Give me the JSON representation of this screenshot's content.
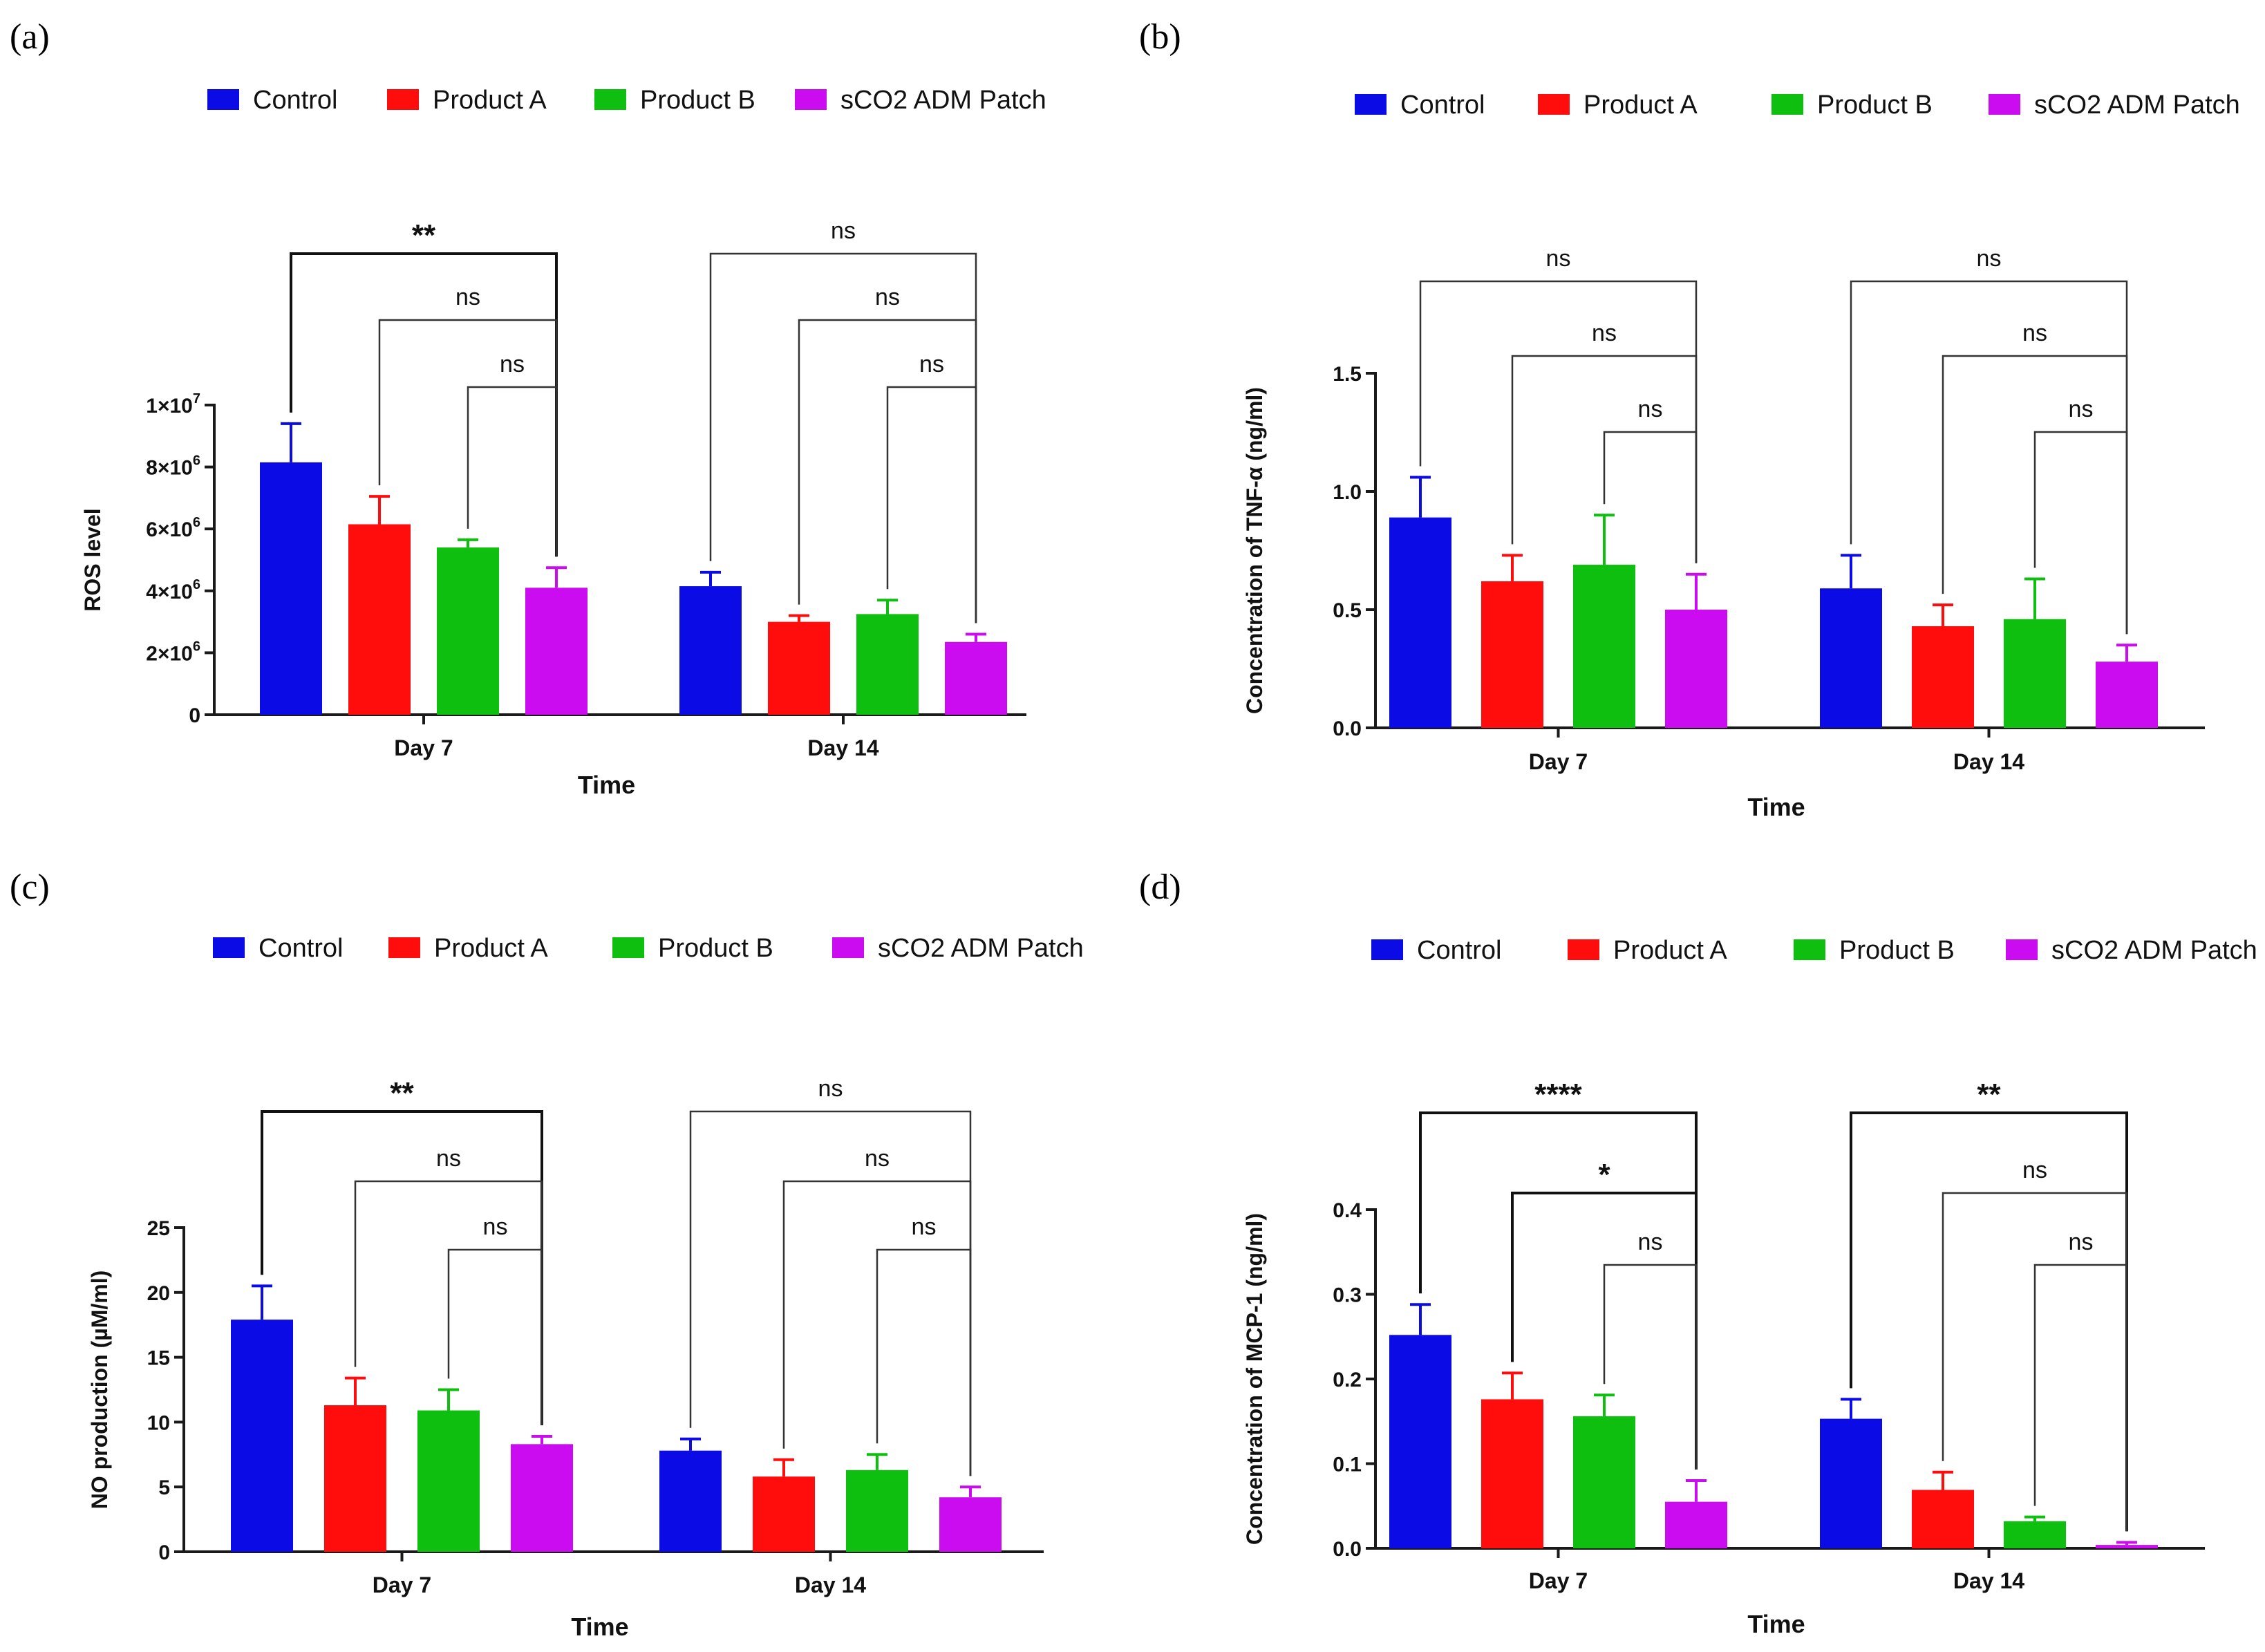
{
  "colors": {
    "Control": "#0b0be6",
    "Product A": "#ff0d0d",
    "Product B": "#0fbf0f",
    "sCO2 ADM Patch": "#cc0cf0",
    "axis": "#1a1a1a",
    "bracket": "#333333"
  },
  "chart_data": [
    {
      "panel": "(a)",
      "type": "bar",
      "categories": [
        "Day 7",
        "Day 14"
      ],
      "legend": [
        "Control",
        "Product A",
        "Product B",
        "sCO2 ADM Patch"
      ],
      "legend_position": "top",
      "xlabel": "Time",
      "ylabel": "ROS level",
      "ylim": [
        0,
        10000000
      ],
      "ytick_values": [
        0,
        2000000,
        4000000,
        6000000,
        8000000,
        10000000
      ],
      "ytick_labels": [
        {
          "base": "0",
          "exp": ""
        },
        {
          "base": "2×10",
          "exp": "6"
        },
        {
          "base": "4×10",
          "exp": "6"
        },
        {
          "base": "6×10",
          "exp": "6"
        },
        {
          "base": "8×10",
          "exp": "6"
        },
        {
          "base": "1×10",
          "exp": "7"
        }
      ],
      "series": [
        {
          "name": "Control",
          "values": [
            8150000,
            4150000
          ],
          "errors": [
            1250000,
            450000
          ]
        },
        {
          "name": "Product A",
          "values": [
            6150000,
            3000000
          ],
          "errors": [
            900000,
            200000
          ]
        },
        {
          "name": "Product B",
          "values": [
            5400000,
            3250000
          ],
          "errors": [
            250000,
            450000
          ]
        },
        {
          "name": "sCO2 ADM Patch",
          "values": [
            4100000,
            2350000
          ],
          "errors": [
            650000,
            250000
          ]
        }
      ],
      "significance": [
        {
          "group": "Day 7",
          "from": "Control",
          "to": "sCO2 ADM Patch",
          "label": "**"
        },
        {
          "group": "Day 7",
          "from": "Product A",
          "to": "sCO2 ADM Patch",
          "label": "ns"
        },
        {
          "group": "Day 7",
          "from": "Product B",
          "to": "sCO2 ADM Patch",
          "label": "ns"
        },
        {
          "group": "Day 14",
          "from": "Control",
          "to": "sCO2 ADM Patch",
          "label": "ns"
        },
        {
          "group": "Day 14",
          "from": "Product A",
          "to": "sCO2 ADM Patch",
          "label": "ns"
        },
        {
          "group": "Day 14",
          "from": "Product B",
          "to": "sCO2 ADM Patch",
          "label": "ns"
        }
      ]
    },
    {
      "panel": "(b)",
      "type": "bar",
      "categories": [
        "Day 7",
        "Day 14"
      ],
      "legend": [
        "Control",
        "Product A",
        "Product B",
        "sCO2 ADM Patch"
      ],
      "legend_position": "top",
      "xlabel": "Time",
      "ylabel": "Concentration of TNF-α (ng/ml)",
      "ylim": [
        0,
        1.5
      ],
      "ytick_values": [
        0,
        0.5,
        1.0,
        1.5
      ],
      "ytick_labels": [
        {
          "base": "0.0",
          "exp": ""
        },
        {
          "base": "0.5",
          "exp": ""
        },
        {
          "base": "1.0",
          "exp": ""
        },
        {
          "base": "1.5",
          "exp": ""
        }
      ],
      "series": [
        {
          "name": "Control",
          "values": [
            0.89,
            0.59
          ],
          "errors": [
            0.17,
            0.14
          ]
        },
        {
          "name": "Product A",
          "values": [
            0.62,
            0.43
          ],
          "errors": [
            0.11,
            0.09
          ]
        },
        {
          "name": "Product B",
          "values": [
            0.69,
            0.46
          ],
          "errors": [
            0.21,
            0.17
          ]
        },
        {
          "name": "sCO2 ADM Patch",
          "values": [
            0.5,
            0.28
          ],
          "errors": [
            0.15,
            0.07
          ]
        }
      ],
      "significance": [
        {
          "group": "Day 7",
          "from": "Control",
          "to": "sCO2 ADM Patch",
          "label": "ns"
        },
        {
          "group": "Day 7",
          "from": "Product A",
          "to": "sCO2 ADM Patch",
          "label": "ns"
        },
        {
          "group": "Day 7",
          "from": "Product B",
          "to": "sCO2 ADM Patch",
          "label": "ns"
        },
        {
          "group": "Day 14",
          "from": "Control",
          "to": "sCO2 ADM Patch",
          "label": "ns"
        },
        {
          "group": "Day 14",
          "from": "Product A",
          "to": "sCO2 ADM Patch",
          "label": "ns"
        },
        {
          "group": "Day 14",
          "from": "Product B",
          "to": "sCO2 ADM Patch",
          "label": "ns"
        }
      ]
    },
    {
      "panel": "(c)",
      "type": "bar",
      "categories": [
        "Day 7",
        "Day 14"
      ],
      "legend": [
        "Control",
        "Product A",
        "Product B",
        "sCO2 ADM Patch"
      ],
      "legend_position": "top",
      "xlabel": "Time",
      "ylabel": "NO production (µM/ml)",
      "ylim": [
        0,
        25
      ],
      "ytick_values": [
        0,
        5,
        10,
        15,
        20,
        25
      ],
      "ytick_labels": [
        {
          "base": "0",
          "exp": ""
        },
        {
          "base": "5",
          "exp": ""
        },
        {
          "base": "10",
          "exp": ""
        },
        {
          "base": "15",
          "exp": ""
        },
        {
          "base": "20",
          "exp": ""
        },
        {
          "base": "25",
          "exp": ""
        }
      ],
      "series": [
        {
          "name": "Control",
          "values": [
            17.9,
            7.8
          ],
          "errors": [
            2.6,
            0.9
          ]
        },
        {
          "name": "Product A",
          "values": [
            11.3,
            5.8
          ],
          "errors": [
            2.1,
            1.3
          ]
        },
        {
          "name": "Product B",
          "values": [
            10.9,
            6.3
          ],
          "errors": [
            1.6,
            1.2
          ]
        },
        {
          "name": "sCO2 ADM Patch",
          "values": [
            8.3,
            4.2
          ],
          "errors": [
            0.6,
            0.8
          ]
        }
      ],
      "significance": [
        {
          "group": "Day 7",
          "from": "Control",
          "to": "sCO2 ADM Patch",
          "label": "**"
        },
        {
          "group": "Day 7",
          "from": "Product A",
          "to": "sCO2 ADM Patch",
          "label": "ns"
        },
        {
          "group": "Day 7",
          "from": "Product B",
          "to": "sCO2 ADM Patch",
          "label": "ns"
        },
        {
          "group": "Day 14",
          "from": "Control",
          "to": "sCO2 ADM Patch",
          "label": "ns"
        },
        {
          "group": "Day 14",
          "from": "Product A",
          "to": "sCO2 ADM Patch",
          "label": "ns"
        },
        {
          "group": "Day 14",
          "from": "Product B",
          "to": "sCO2 ADM Patch",
          "label": "ns"
        }
      ]
    },
    {
      "panel": "(d)",
      "type": "bar",
      "categories": [
        "Day 7",
        "Day 14"
      ],
      "legend": [
        "Control",
        "Product A",
        "Product B",
        "sCO2 ADM Patch"
      ],
      "legend_position": "top",
      "xlabel": "Time",
      "ylabel": "Concentration of MCP-1 (ng/ml)",
      "ylim": [
        0,
        0.4
      ],
      "ytick_values": [
        0,
        0.1,
        0.2,
        0.3,
        0.4
      ],
      "ytick_labels": [
        {
          "base": "0.0",
          "exp": ""
        },
        {
          "base": "0.1",
          "exp": ""
        },
        {
          "base": "0.2",
          "exp": ""
        },
        {
          "base": "0.3",
          "exp": ""
        },
        {
          "base": "0.4",
          "exp": ""
        }
      ],
      "series": [
        {
          "name": "Control",
          "values": [
            0.252,
            0.153
          ],
          "errors": [
            0.036,
            0.023
          ]
        },
        {
          "name": "Product A",
          "values": [
            0.176,
            0.069
          ],
          "errors": [
            0.031,
            0.021
          ]
        },
        {
          "name": "Product B",
          "values": [
            0.156,
            0.032
          ],
          "errors": [
            0.025,
            0.005
          ]
        },
        {
          "name": "sCO2 ADM Patch",
          "values": [
            0.055,
            0.004
          ],
          "errors": [
            0.025,
            0.003
          ]
        }
      ],
      "significance": [
        {
          "group": "Day 7",
          "from": "Control",
          "to": "sCO2 ADM Patch",
          "label": "****"
        },
        {
          "group": "Day 7",
          "from": "Product A",
          "to": "sCO2 ADM Patch",
          "label": "*"
        },
        {
          "group": "Day 7",
          "from": "Product B",
          "to": "sCO2 ADM Patch",
          "label": "ns"
        },
        {
          "group": "Day 14",
          "from": "Control",
          "to": "sCO2 ADM Patch",
          "label": "**"
        },
        {
          "group": "Day 14",
          "from": "Product A",
          "to": "sCO2 ADM Patch",
          "label": "ns"
        },
        {
          "group": "Day 14",
          "from": "Product B",
          "to": "sCO2 ADM Patch",
          "label": "ns"
        }
      ]
    }
  ]
}
